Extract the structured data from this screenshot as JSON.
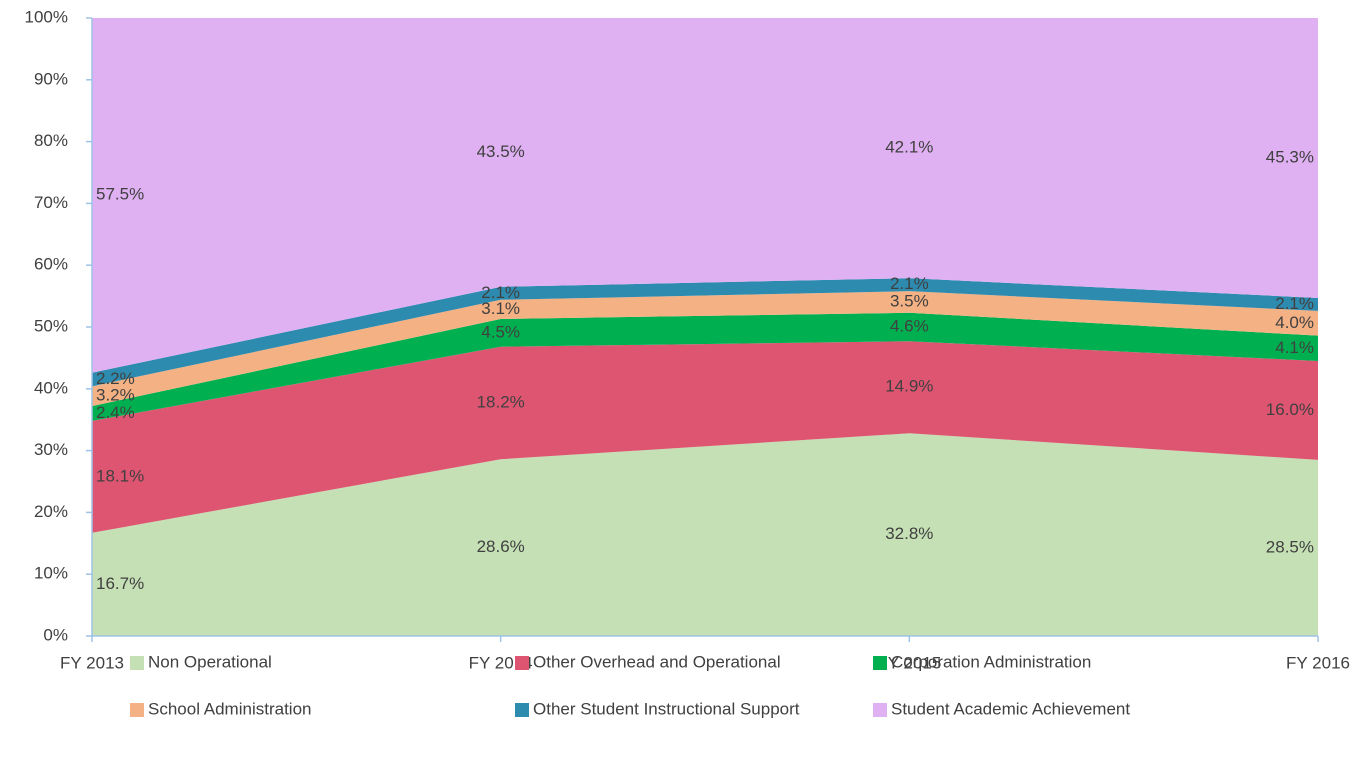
{
  "chart_data": {
    "type": "stacked_area",
    "categories": [
      "FY 2013",
      "FY 2014",
      "FY 2015",
      "FY 2016"
    ],
    "ylim": [
      0,
      100
    ],
    "yticks": [
      {
        "value": 0,
        "label": "0%"
      },
      {
        "value": 10,
        "label": "10%"
      },
      {
        "value": 20,
        "label": "20%"
      },
      {
        "value": 30,
        "label": "30%"
      },
      {
        "value": 40,
        "label": "40%"
      },
      {
        "value": 50,
        "label": "50%"
      },
      {
        "value": 60,
        "label": "60%"
      },
      {
        "value": 70,
        "label": "70%"
      },
      {
        "value": 80,
        "label": "80%"
      },
      {
        "value": 90,
        "label": "90%"
      },
      {
        "value": 100,
        "label": "100%"
      }
    ],
    "legend": "bottom",
    "series": [
      {
        "name": "Non Operational",
        "color": "#c5e0b4",
        "values": [
          16.7,
          28.6,
          32.8,
          28.5
        ],
        "value_labels": [
          "16.7%",
          "28.6%",
          "32.8%",
          "28.5%"
        ]
      },
      {
        "name": "Other Overhead and Operational",
        "color": "#de5572",
        "values": [
          18.1,
          18.2,
          14.9,
          16.0
        ],
        "value_labels": [
          "18.1%",
          "18.2%",
          "14.9%",
          "16.0%"
        ]
      },
      {
        "name": "Corporation Administration",
        "color": "#00b050",
        "values": [
          2.4,
          4.5,
          4.6,
          4.1
        ],
        "value_labels": [
          "2.4%",
          "4.5%",
          "4.6%",
          "4.1%"
        ]
      },
      {
        "name": "School Administration",
        "color": "#f4b183",
        "values": [
          3.2,
          3.1,
          3.5,
          4.0
        ],
        "value_labels": [
          "3.2%",
          "3.1%",
          "3.5%",
          "4.0%"
        ]
      },
      {
        "name": "Other Student Instructional Support",
        "color": "#2e8bb0",
        "values": [
          2.2,
          2.1,
          2.1,
          2.1
        ],
        "value_labels": [
          "2.2%",
          "2.1%",
          "2.1%",
          "2.1%"
        ]
      },
      {
        "name": "Student Academic Achievement",
        "color": "#dfb0f2",
        "values": [
          57.5,
          43.5,
          42.1,
          45.3
        ],
        "value_labels": [
          "57.5%",
          "43.5%",
          "42.1%",
          "45.3%"
        ]
      }
    ]
  }
}
